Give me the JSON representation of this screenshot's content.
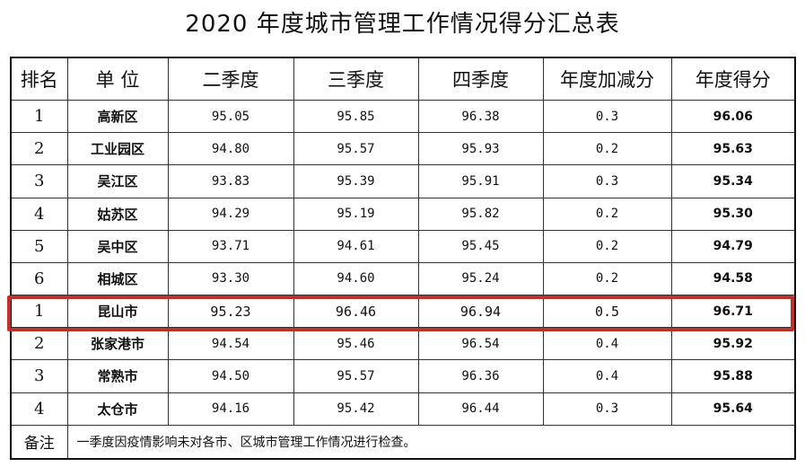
{
  "title": "2020 年度城市管理工作情况得分汇总表",
  "headers": [
    "排名",
    "单 位",
    "二季度",
    "三季度",
    "四季度",
    "年度加减分",
    "年度得分"
  ],
  "rows": [
    {
      "rank": "1",
      "unit": "高新区",
      "q2": "95.05",
      "q3": "95.85",
      "q4": "96.38",
      "adj": "0.3",
      "total": "96.06"
    },
    {
      "rank": "2",
      "unit": "工业园区",
      "q2": "94.80",
      "q3": "95.57",
      "q4": "95.93",
      "adj": "0.2",
      "total": "95.63"
    },
    {
      "rank": "3",
      "unit": "吴江区",
      "q2": "93.83",
      "q3": "95.39",
      "q4": "95.91",
      "adj": "0.3",
      "total": "95.34"
    },
    {
      "rank": "4",
      "unit": "姑苏区",
      "q2": "94.29",
      "q3": "95.19",
      "q4": "95.82",
      "adj": "0.2",
      "total": "95.30"
    },
    {
      "rank": "5",
      "unit": "吴中区",
      "q2": "93.71",
      "q3": "94.61",
      "q4": "95.45",
      "adj": "0.2",
      "total": "94.79"
    },
    {
      "rank": "6",
      "unit": "相城区",
      "q2": "93.30",
      "q3": "94.60",
      "q4": "95.24",
      "adj": "0.2",
      "total": "94.58"
    },
    {
      "rank": "1",
      "unit": "昆山市",
      "q2": "95.23",
      "q3": "96.46",
      "q4": "96.94",
      "adj": "0.5",
      "total": "96.71"
    },
    {
      "rank": "2",
      "unit": "张家港市",
      "q2": "94.54",
      "q3": "95.46",
      "q4": "96.54",
      "adj": "0.4",
      "total": "95.92"
    },
    {
      "rank": "3",
      "unit": "常熟市",
      "q2": "94.50",
      "q3": "95.57",
      "q4": "96.36",
      "adj": "0.4",
      "total": "95.88"
    },
    {
      "rank": "4",
      "unit": "太仓市",
      "q2": "94.16",
      "q3": "95.42",
      "q4": "96.44",
      "adj": "0.3",
      "total": "95.64"
    }
  ],
  "note": {
    "label": "备注",
    "text": "一季度因疫情影响未对各市、区城市管理工作情况进行检查。"
  },
  "highlight_color": "#c0312b"
}
